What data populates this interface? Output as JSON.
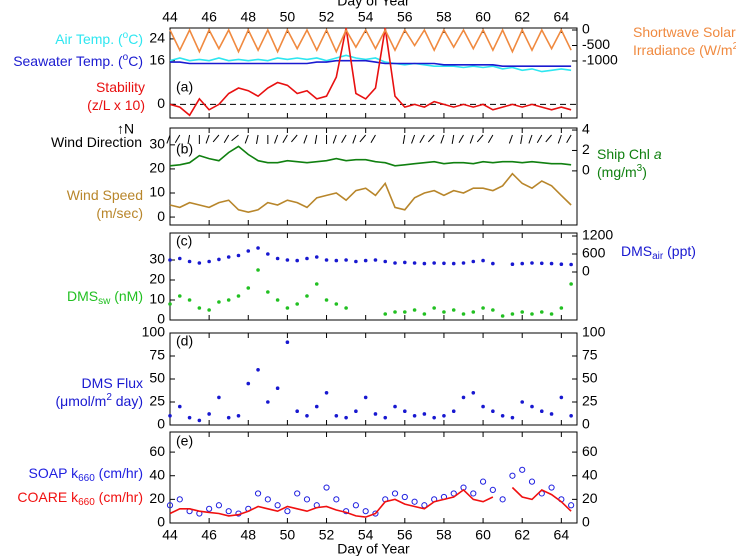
{
  "chart_data": [
    {
      "type": "line",
      "panel_label": "(a)",
      "title": "Day of Year",
      "xlim": [
        44,
        64.8
      ],
      "xticks": [
        44,
        46,
        48,
        50,
        52,
        54,
        56,
        58,
        60,
        62,
        64
      ],
      "ylim": [
        -5,
        28
      ],
      "yticks": [
        0,
        16,
        24
      ],
      "y2lim": [
        -2840,
        65
      ],
      "y2ticks": [
        -1000,
        -500,
        0
      ],
      "reference_line": 0,
      "x": [
        44,
        44.5,
        45,
        45.5,
        46,
        46.5,
        47,
        47.5,
        48,
        48.5,
        49,
        49.5,
        50,
        50.5,
        51,
        51.5,
        52,
        52.5,
        53,
        53.5,
        54,
        54.5,
        55,
        55.5,
        56,
        56.5,
        57,
        57.5,
        58,
        58.5,
        59,
        59.5,
        60,
        60.5,
        61,
        61.5,
        62,
        62.5,
        63,
        63.5,
        64,
        64.5
      ],
      "series": [
        {
          "name": [
            [
              {
                "text": "Air Temp. ("
              },
              {
                "text": "o",
                "style": "sup"
              },
              {
                "text": "C)"
              }
            ]
          ],
          "color": "#2ee6f0",
          "mode": "line",
          "values": [
            16,
            17,
            16,
            16.5,
            16,
            17,
            16,
            16.5,
            16,
            16.5,
            16,
            17,
            16.5,
            17,
            16.5,
            17,
            16,
            17,
            18,
            17,
            16.5,
            17,
            15.5,
            15,
            14.5,
            15,
            14.5,
            14,
            14,
            14,
            13.5,
            14,
            13.5,
            14,
            13,
            13.5,
            12.5,
            13,
            12,
            12.5,
            13,
            12.5
          ]
        },
        {
          "name": [
            [
              {
                "text": "Seawater Temp. ("
              },
              {
                "text": "o",
                "style": "sup"
              },
              {
                "text": "C)"
              }
            ]
          ],
          "color": "#1a1ad0",
          "mode": "line",
          "values": [
            15.5,
            15.5,
            15,
            15,
            15,
            15,
            15,
            15,
            15,
            15,
            15,
            15,
            15,
            15,
            15,
            15.5,
            15.5,
            16,
            16,
            16,
            16,
            15.5,
            15,
            15,
            15,
            15,
            15,
            15,
            14.5,
            14.5,
            14.5,
            14.5,
            14.5,
            14.5,
            14,
            14,
            14,
            14,
            14,
            14,
            14,
            14
          ]
        },
        {
          "name": [
            [
              {
                "text": "Stability"
              }
            ],
            [
              {
                "text": "(z/L x 10)"
              }
            ]
          ],
          "color": "#e81010",
          "mode": "line",
          "values": [
            0,
            -1,
            -4,
            2,
            -2,
            0,
            4,
            6,
            5,
            3,
            6,
            8,
            7,
            4,
            5,
            2,
            3,
            10,
            28,
            4,
            2,
            6,
            28,
            3,
            -1,
            0,
            -1,
            1,
            0,
            -1,
            0,
            -1,
            0,
            -2,
            -1,
            0,
            -1,
            0,
            -1,
            -2,
            -1,
            -2
          ]
        },
        {
          "name": [
            [
              {
                "text": "Shortwave Solar"
              }
            ],
            [
              {
                "text": "Irradiance (W/m"
              },
              {
                "text": "2",
                "style": "sup"
              },
              {
                "text": ")"
              }
            ]
          ],
          "color": "#f08a40",
          "mode": "line",
          "axis": "y2",
          "values": [
            0,
            -650,
            0,
            -700,
            0,
            -600,
            0,
            -700,
            0,
            -650,
            0,
            -700,
            0,
            -600,
            0,
            -650,
            0,
            -700,
            0,
            -550,
            0,
            -600,
            0,
            -650,
            0,
            -500,
            0,
            -650,
            0,
            -550,
            0,
            -600,
            0,
            -650,
            0,
            -700,
            0,
            -650,
            0,
            -600,
            0,
            -650
          ]
        }
      ]
    },
    {
      "type": "line",
      "panel_label": "(b)",
      "xlim": [
        44,
        64.8
      ],
      "xticks": [
        44,
        46,
        48,
        50,
        52,
        54,
        56,
        58,
        60,
        62,
        64
      ],
      "ylim": [
        -3.3,
        37
      ],
      "yticks": [
        0,
        10,
        20,
        30
      ],
      "y2lim": [
        -5.3,
        4.2
      ],
      "y2ticks": [
        0,
        2,
        4
      ],
      "x": [
        44,
        44.5,
        45,
        45.5,
        46,
        46.5,
        47,
        47.5,
        48,
        48.5,
        49,
        49.5,
        50,
        50.5,
        51,
        51.5,
        52,
        52.5,
        53,
        53.5,
        54,
        54.5,
        55,
        55.5,
        56,
        56.5,
        57,
        57.5,
        58,
        58.5,
        59,
        59.5,
        60,
        60.5,
        61,
        61.5,
        62,
        62.5,
        63,
        63.5,
        64,
        64.5
      ],
      "series": [
        {
          "name": [
            [
              {
                "text": "Wind Direction"
              }
            ]
          ],
          "compass": "↑N",
          "color": "#000000",
          "mode": "arrows",
          "values": [
            200,
            210,
            190,
            180,
            200,
            220,
            210,
            230,
            200,
            190,
            180,
            200,
            210,
            220,
            200,
            190,
            180,
            200,
            210,
            200,
            220,
            210,
            null,
            null,
            190,
            200,
            210,
            220,
            200,
            190,
            210,
            200,
            220,
            210,
            null,
            200,
            190,
            200,
            210,
            220,
            200,
            210
          ]
        },
        {
          "name": [
            [
              {
                "text": "Wind Speed"
              }
            ],
            [
              {
                "text": "(m/sec)"
              }
            ]
          ],
          "color": "#b8862b",
          "mode": "line",
          "values": [
            5,
            4,
            6,
            5,
            4,
            6,
            7,
            3,
            2,
            3,
            6,
            5,
            7,
            6,
            4,
            8,
            9,
            10,
            7,
            11,
            12,
            9,
            14,
            4,
            3,
            8,
            10,
            11,
            9,
            11,
            10,
            12,
            12,
            11,
            13,
            18,
            14,
            12,
            15,
            13,
            9,
            5
          ]
        },
        {
          "name": [
            [
              {
                "text": "Ship Chl "
              },
              {
                "text": "a",
                "style": "italic"
              }
            ],
            [
              {
                "text": "(mg/m"
              },
              {
                "text": "3",
                "style": "sup"
              },
              {
                "text": ")"
              }
            ]
          ],
          "color": "#108010",
          "mode": "line",
          "axis": "y2",
          "values": [
            0.5,
            0.6,
            0.8,
            1.5,
            1.2,
            1.0,
            1.8,
            2.4,
            1.6,
            1.0,
            0.8,
            0.8,
            1.0,
            0.9,
            0.8,
            0.9,
            1.0,
            1.2,
            1.0,
            1.1,
            1.1,
            0.9,
            0.8,
            0.5,
            0.6,
            0.7,
            0.8,
            0.9,
            0.7,
            0.8,
            0.8,
            0.7,
            0.9,
            0.8,
            0.9,
            0.9,
            0.8,
            0.9,
            0.8,
            0.7,
            0.7,
            0.6
          ]
        }
      ]
    },
    {
      "type": "scatter",
      "panel_label": "(c)",
      "xlim": [
        44,
        64.8
      ],
      "xticks": [
        44,
        46,
        48,
        50,
        52,
        54,
        56,
        58,
        60,
        62,
        64
      ],
      "ylim": [
        0,
        43.5
      ],
      "yticks": [
        0,
        10,
        20,
        30
      ],
      "y2lim": [
        -1600,
        1300
      ],
      "y2ticks": [
        0,
        600,
        1200
      ],
      "x": [
        44,
        44.5,
        45,
        45.5,
        46,
        46.5,
        47,
        47.5,
        48,
        48.5,
        49,
        49.5,
        50,
        50.5,
        51,
        51.5,
        52,
        52.5,
        53,
        53.5,
        54,
        54.5,
        55,
        55.5,
        56,
        56.5,
        57,
        57.5,
        58,
        58.5,
        59,
        59.5,
        60,
        60.5,
        61,
        61.5,
        62,
        62.5,
        63,
        63.5,
        64,
        64.5
      ],
      "series": [
        {
          "name": [
            [
              {
                "text": "DMS"
              },
              {
                "text": "air",
                "style": "sub"
              },
              {
                "text": " (ppt)"
              }
            ]
          ],
          "color": "#1818d0",
          "mode": "markers",
          "axis": "y2",
          "values": [
            400,
            450,
            350,
            300,
            350,
            420,
            500,
            550,
            700,
            800,
            600,
            450,
            400,
            380,
            450,
            500,
            400,
            380,
            400,
            350,
            380,
            400,
            350,
            300,
            320,
            300,
            280,
            300,
            290,
            280,
            300,
            350,
            380,
            280,
            null,
            260,
            280,
            300,
            290,
            280,
            260,
            250
          ]
        },
        {
          "name": [
            [
              {
                "text": "DMS"
              },
              {
                "text": "sw",
                "style": "sub"
              },
              {
                "text": " (nM)"
              }
            ]
          ],
          "color": "#22c022",
          "mode": "markers",
          "values": [
            8,
            12,
            10,
            6,
            5,
            9,
            10,
            12,
            16,
            25,
            14,
            10,
            6,
            8,
            12,
            18,
            10,
            8,
            6,
            null,
            null,
            null,
            3,
            4,
            4,
            5,
            3,
            6,
            4,
            5,
            3,
            4,
            6,
            5,
            2,
            3,
            4,
            3,
            4,
            3,
            6,
            18
          ]
        }
      ]
    },
    {
      "type": "scatter",
      "panel_label": "(d)",
      "xlim": [
        44,
        64.8
      ],
      "xticks": [
        44,
        46,
        48,
        50,
        52,
        54,
        56,
        58,
        60,
        62,
        64
      ],
      "ylim": [
        0,
        100
      ],
      "yticks": [
        0,
        25,
        50,
        75,
        100
      ],
      "y2lim": [
        0,
        100
      ],
      "y2ticks": [
        0,
        25,
        50,
        75,
        100
      ],
      "x": [
        44,
        44.5,
        45,
        45.5,
        46,
        46.5,
        47,
        47.5,
        48,
        48.5,
        49,
        49.5,
        50,
        50.5,
        51,
        51.5,
        52,
        52.5,
        53,
        53.5,
        54,
        54.5,
        55,
        55.5,
        56,
        56.5,
        57,
        57.5,
        58,
        58.5,
        59,
        59.5,
        60,
        60.5,
        61,
        61.5,
        62,
        62.5,
        63,
        63.5,
        64,
        64.5
      ],
      "series": [
        {
          "name": [
            [
              {
                "text": "DMS Flux"
              }
            ],
            [
              {
                "text": "(μmol/m"
              },
              {
                "text": "2",
                "style": "sup"
              },
              {
                "text": " day)"
              }
            ]
          ],
          "color": "#1818d0",
          "mode": "markers",
          "values": [
            10,
            20,
            8,
            5,
            12,
            30,
            8,
            10,
            45,
            60,
            25,
            40,
            90,
            15,
            10,
            20,
            35,
            10,
            8,
            15,
            30,
            12,
            8,
            20,
            15,
            10,
            12,
            8,
            10,
            15,
            30,
            35,
            20,
            15,
            10,
            8,
            25,
            20,
            15,
            12,
            30,
            10
          ]
        }
      ]
    },
    {
      "type": "scatter",
      "panel_label": "(e)",
      "xlabel": "Day of Year",
      "xlim": [
        44,
        64.8
      ],
      "xticks": [
        44,
        46,
        48,
        50,
        52,
        54,
        56,
        58,
        60,
        62,
        64
      ],
      "ylim": [
        0,
        77
      ],
      "yticks": [
        0,
        20,
        40,
        60
      ],
      "y2lim": [
        0,
        77
      ],
      "y2ticks": [
        0,
        20,
        40,
        60
      ],
      "x": [
        44,
        44.5,
        45,
        45.5,
        46,
        46.5,
        47,
        47.5,
        48,
        48.5,
        49,
        49.5,
        50,
        50.5,
        51,
        51.5,
        52,
        52.5,
        53,
        53.5,
        54,
        54.5,
        55,
        55.5,
        56,
        56.5,
        57,
        57.5,
        58,
        58.5,
        59,
        59.5,
        60,
        60.5,
        61,
        61.5,
        62,
        62.5,
        63,
        63.5,
        64,
        64.5
      ],
      "series": [
        {
          "name": [
            [
              {
                "text": "SOAP k"
              },
              {
                "text": "660",
                "style": "sub"
              },
              {
                "text": " (cm/hr)"
              }
            ]
          ],
          "color": "#2020e0",
          "mode": "open-circles",
          "values": [
            15,
            20,
            10,
            8,
            12,
            15,
            10,
            8,
            12,
            25,
            20,
            15,
            10,
            25,
            20,
            15,
            30,
            20,
            10,
            15,
            10,
            8,
            20,
            25,
            22,
            18,
            15,
            20,
            22,
            25,
            30,
            25,
            35,
            28,
            20,
            40,
            45,
            35,
            25,
            30,
            20,
            15
          ]
        },
        {
          "name": [
            [
              {
                "text": "COARE k"
              },
              {
                "text": "660",
                "style": "sub"
              },
              {
                "text": " (cm/hr)"
              }
            ]
          ],
          "color": "#f01010",
          "mode": "line",
          "values": [
            8,
            12,
            12,
            10,
            9,
            8,
            6,
            7,
            10,
            14,
            12,
            10,
            14,
            12,
            10,
            13,
            14,
            11,
            9,
            6,
            5,
            8,
            18,
            20,
            16,
            14,
            12,
            18,
            20,
            22,
            28,
            20,
            18,
            22,
            null,
            30,
            22,
            20,
            28,
            24,
            18,
            10
          ]
        }
      ]
    }
  ]
}
